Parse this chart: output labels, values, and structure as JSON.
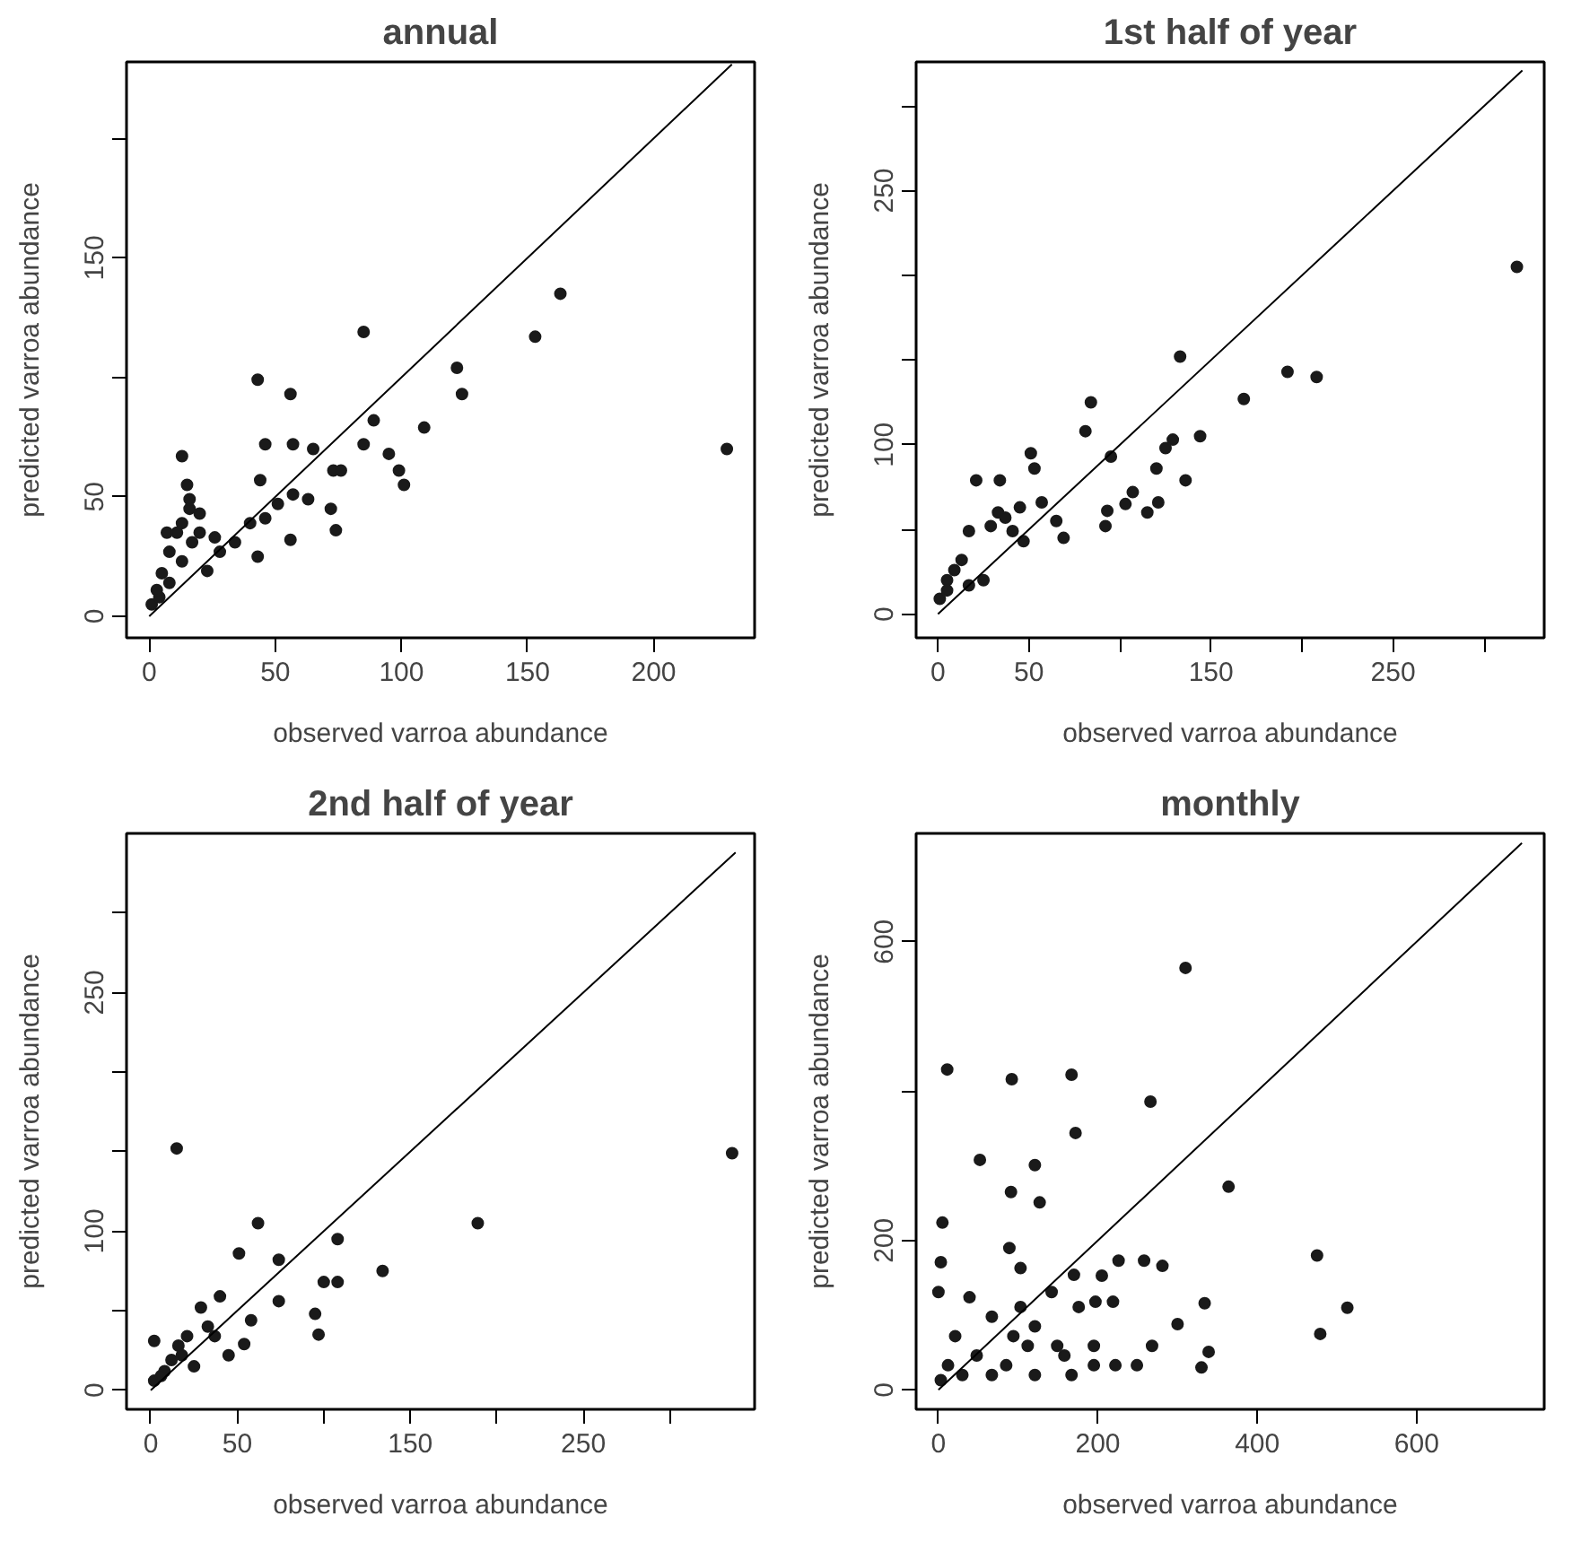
{
  "chart_data": [
    {
      "type": "scatter",
      "title": "annual",
      "xlabel": "observed varroa abundance",
      "ylabel": "predicted varroa abundance",
      "marker": "circle",
      "grid": false,
      "xlim": [
        -9,
        240
      ],
      "ylim": [
        -9,
        232
      ],
      "xticks": [
        0,
        50,
        100,
        150,
        200
      ],
      "yticks": [
        0,
        50,
        {
          "value": 100,
          "label": null
        },
        150,
        {
          "value": 200,
          "label": null
        }
      ],
      "series": [
        {
          "color": "#1a1a1a",
          "x": [
            229,
            163,
            153,
            85,
            122,
            124,
            109,
            89,
            85,
            95,
            99,
            101,
            43,
            56,
            46,
            57,
            65,
            44,
            73,
            76,
            72,
            74,
            63,
            57,
            51,
            46,
            56,
            43,
            40,
            34,
            28,
            23,
            13,
            15,
            16,
            11,
            20,
            8,
            5,
            1,
            4,
            17,
            26,
            13,
            7,
            20,
            16,
            8,
            13,
            3
          ],
          "values": [
            70,
            135,
            117,
            119,
            104,
            93,
            79,
            82,
            72,
            68,
            61,
            55,
            99,
            93,
            72,
            72,
            70,
            57,
            61,
            61,
            45,
            36,
            49,
            51,
            47,
            41,
            32,
            25,
            39,
            31,
            27,
            19,
            67,
            55,
            45,
            35,
            35,
            27,
            18,
            5,
            8,
            31,
            33,
            39,
            35,
            43,
            49,
            14,
            23,
            11
          ]
        },
        {
          "type": "line",
          "marker": "none",
          "color": "#000000",
          "x": [
            0,
            231
          ],
          "values": [
            0,
            231
          ]
        }
      ]
    },
    {
      "type": "scatter",
      "title": "1st half of year",
      "xlabel": "observed varroa abundance",
      "ylabel": "predicted varroa abundance",
      "marker": "circle",
      "grid": false,
      "xlim": [
        -12,
        333
      ],
      "ylim": [
        -14,
        326
      ],
      "xticks": [
        0,
        50,
        {
          "value": 100,
          "label": null
        },
        150,
        {
          "value": 200,
          "label": null
        },
        250,
        {
          "value": 300,
          "label": null
        }
      ],
      "yticks": [
        0,
        {
          "value": 50,
          "label": null
        },
        100,
        {
          "value": 150,
          "label": null
        },
        {
          "value": 200,
          "label": null
        },
        250,
        {
          "value": 300,
          "label": null
        }
      ],
      "series": [
        {
          "color": "#1a1a1a",
          "x": [
            318,
            133,
            192,
            208,
            168,
            84,
            81,
            144,
            129,
            125,
            136,
            120,
            95,
            107,
            103,
            93,
            92,
            121,
            115,
            51,
            53,
            21,
            34,
            57,
            65,
            69,
            45,
            33,
            17,
            29,
            47,
            41,
            13,
            5,
            9,
            1,
            25,
            17,
            37,
            5
          ],
          "values": [
            205,
            152,
            143,
            140,
            127,
            125,
            108,
            105,
            103,
            98,
            79,
            86,
            93,
            72,
            65,
            61,
            52,
            66,
            60,
            95,
            86,
            79,
            79,
            66,
            55,
            45,
            63,
            60,
            49,
            52,
            43,
            49,
            32,
            20,
            26,
            9,
            20,
            17,
            57,
            14
          ]
        },
        {
          "type": "line",
          "marker": "none",
          "color": "#000000",
          "x": [
            0,
            321
          ],
          "values": [
            0,
            321
          ]
        }
      ]
    },
    {
      "type": "scatter",
      "title": "2nd half of year",
      "xlabel": "observed varroa abundance",
      "ylabel": "predicted varroa abundance",
      "marker": "circle",
      "grid": false,
      "xlim": [
        -14,
        349
      ],
      "ylim": [
        -12,
        350
      ],
      "xticks": [
        0,
        50,
        {
          "value": 100,
          "label": null
        },
        150,
        {
          "value": 200,
          "label": null
        },
        250,
        {
          "value": 300,
          "label": null
        }
      ],
      "yticks": [
        0,
        {
          "value": 50,
          "label": null
        },
        100,
        {
          "value": 150,
          "label": null
        },
        {
          "value": 200,
          "label": null
        },
        250,
        {
          "value": 300,
          "label": null
        }
      ],
      "series": [
        {
          "color": "#1a1a1a",
          "x": [
            336,
            15,
            189,
            62,
            51,
            74,
            108,
            134,
            100,
            108,
            74,
            95,
            97,
            54,
            45,
            58,
            40,
            29,
            33,
            21,
            16,
            2,
            12,
            8,
            2,
            6,
            25,
            37,
            18
          ],
          "values": [
            149,
            152,
            105,
            105,
            86,
            82,
            95,
            75,
            68,
            68,
            56,
            48,
            35,
            29,
            22,
            44,
            59,
            52,
            40,
            34,
            28,
            31,
            19,
            12,
            6,
            9,
            15,
            34,
            22
          ]
        },
        {
          "type": "line",
          "marker": "none",
          "color": "#000000",
          "x": [
            0,
            338
          ],
          "values": [
            0,
            338
          ]
        }
      ]
    },
    {
      "type": "scatter",
      "title": "monthly",
      "xlabel": "observed varroa abundance",
      "ylabel": "predicted varroa abundance",
      "marker": "circle",
      "grid": false,
      "xlim": [
        -28,
        760
      ],
      "ylim": [
        -26,
        745
      ],
      "xticks": [
        0,
        200,
        400,
        600
      ],
      "yticks": [
        0,
        200,
        {
          "value": 400,
          "label": null
        },
        600
      ],
      "series": [
        {
          "color": "#1a1a1a",
          "x": [
            310,
            11,
            92,
            167,
            266,
            172,
            52,
            121,
            364,
            91,
            127,
            5,
            3,
            89,
            103,
            475,
            513,
            479,
            334,
            339,
            330,
            300,
            258,
            281,
            226,
            205,
            219,
            197,
            170,
            142,
            176,
            121,
            149,
            195,
            249,
            268,
            67,
            39,
            0,
            21,
            12,
            48,
            94,
            85,
            121,
            167,
            222,
            3,
            30,
            67,
            112,
            195,
            158,
            103
          ],
          "values": [
            565,
            429,
            416,
            422,
            386,
            344,
            308,
            301,
            272,
            265,
            251,
            224,
            171,
            190,
            163,
            180,
            110,
            75,
            116,
            51,
            30,
            88,
            173,
            166,
            173,
            153,
            118,
            118,
            154,
            131,
            111,
            85,
            59,
            59,
            33,
            59,
            98,
            124,
            131,
            72,
            33,
            46,
            72,
            33,
            20,
            20,
            33,
            13,
            20,
            20,
            59,
            33,
            46,
            111
          ]
        },
        {
          "type": "line",
          "marker": "none",
          "color": "#000000",
          "x": [
            0,
            732
          ],
          "values": [
            0,
            732
          ]
        }
      ]
    }
  ]
}
